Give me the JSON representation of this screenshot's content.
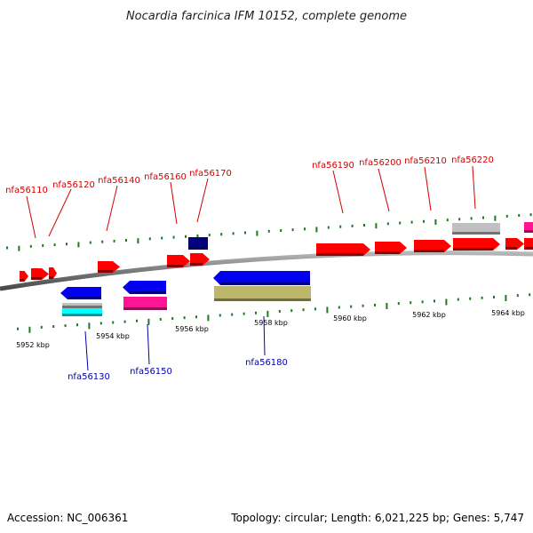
{
  "title": "Nocardia farcinica IFM 10152, complete genome",
  "footer": {
    "accession": "Accession: NC_006361",
    "summary": "Topology: circular; Length: 6,021,225 bp; Genes: 5,747"
  },
  "colors": {
    "backbone": "#808080",
    "tick": "#1e7a1e",
    "label_forward": "#d40000",
    "label_reverse": "#0000aa",
    "forward_gene": "#ff0000",
    "reverse_gene": "#0000ee",
    "navy_gene": "#000080",
    "rna_gene": "#c0c0c0",
    "magenta_gene": "#ff1493",
    "cyan_gene": "#00ffff",
    "olive_gene": "#bdb76b"
  },
  "scale": {
    "labels": [
      "5952 kbp",
      "5954 kbp",
      "5956 kbp",
      "5958 kbp",
      "5960 kbp",
      "5962 kbp",
      "5964 kbp"
    ]
  },
  "genes_forward": [
    {
      "label": "nfa56110",
      "color": "forward_gene"
    },
    {
      "label": "nfa56120",
      "color": "forward_gene"
    },
    {
      "label": "nfa56140",
      "color": "forward_gene"
    },
    {
      "label": "nfa56160",
      "color": "forward_gene"
    },
    {
      "label": "nfa56170",
      "color": "forward_gene"
    },
    {
      "label": "nfa56190",
      "color": "forward_gene"
    },
    {
      "label": "nfa56200",
      "color": "forward_gene"
    },
    {
      "label": "nfa56210",
      "color": "forward_gene"
    },
    {
      "label": "nfa56220",
      "color": "forward_gene"
    }
  ],
  "genes_reverse": [
    {
      "label": "nfa56130",
      "color": "reverse_gene"
    },
    {
      "label": "nfa56150",
      "color": "reverse_gene"
    },
    {
      "label": "nfa56180",
      "color": "reverse_gene"
    }
  ]
}
